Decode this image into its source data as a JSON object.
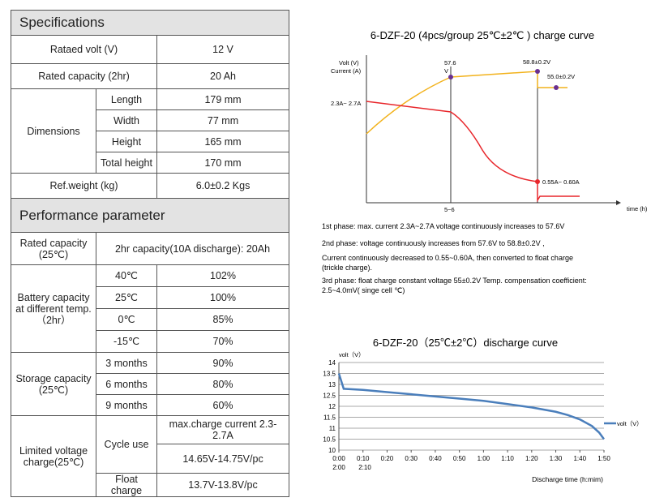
{
  "specifications": {
    "title": "Specifications",
    "rows": [
      [
        "Rataed volt (V)",
        "12 V"
      ],
      [
        "Rated capacity (2hr)",
        "20 Ah"
      ],
      [
        "Ref.weight (kg)",
        "6.0±0.2 Kgs"
      ]
    ],
    "dimensions": {
      "label": "Dimensions",
      "rows": [
        [
          "Length",
          "179 mm"
        ],
        [
          "Width",
          "77 mm"
        ],
        [
          "Height",
          "165 mm"
        ],
        [
          "Total height",
          "170 mm"
        ]
      ]
    }
  },
  "performance": {
    "title": "Performance parameter",
    "rated_capacity": {
      "label": "Rated capacity (25℃)",
      "value": "2hr capacity(10A discharge): 20Ah"
    },
    "battery_capacity": {
      "label": "Battery capacity at different temp. （2hr）",
      "rows": [
        [
          "40℃",
          "102%"
        ],
        [
          "25℃",
          "100%"
        ],
        [
          "0℃",
          "85%"
        ],
        [
          "-15℃",
          "70%"
        ]
      ]
    },
    "storage_capacity": {
      "label": "Storage capacity (25℃)",
      "rows": [
        [
          "3 months",
          "90%"
        ],
        [
          "6 months",
          "80%"
        ],
        [
          "9 months",
          "60%"
        ]
      ]
    },
    "limited_voltage": {
      "label": "Limited voltage charge(25℃)",
      "cycle_use": {
        "label": "Cycle use",
        "values": [
          "max.charge current 2.3-2.7A",
          "14.65V-14.75V/pc"
        ]
      },
      "float_charge": {
        "label": "Float charge",
        "value": "13.7V-13.8V/pc"
      }
    }
  },
  "charge_curve": {
    "title": "6-DZF-20 (4pcs/group  25℃±2℃ ) charge curve",
    "y_labels": [
      "Volt (V)",
      "Current (A)"
    ],
    "annotations": [
      "2.3A~ 2.7A",
      "57.6",
      "V",
      "58.8±0.2V",
      "55.0±0.2V",
      "0.55A~ 0.60A"
    ],
    "x_mark": "5~6",
    "x_label": "time (h)",
    "notes": [
      "1st phase: max. current 2.3A~2.7A voltage continuously increases to 57.6V",
      "2nd phase: voltage continuously increases from 57.6V to 58.8±0.2V ,",
      "Current continuously decreased to 0.55~0.60A, then converted to float charge",
      "(trickle charge).",
      "3rd phase: float charge constant voltage 55±0.2V  Temp. compensation coefficient:",
      "2.5~4.0mV( singe cell ℃)"
    ]
  },
  "discharge_curve": {
    "type": "line",
    "title": "6-DZF-20（25℃±2℃）discharge curve",
    "y_label": "volt（V）",
    "x_label": "Discharge time (h:mim)",
    "ylim": [
      10,
      14
    ],
    "yticks": [
      10,
      10.5,
      11,
      11.5,
      12,
      12.5,
      13,
      13.5,
      14
    ],
    "xlim": [
      0,
      110
    ],
    "xticks": [
      {
        "value": 0,
        "label": "0:00"
      },
      {
        "value": 10,
        "label": "0:10"
      },
      {
        "value": 20,
        "label": "0:20"
      },
      {
        "value": 30,
        "label": "0:30"
      },
      {
        "value": 40,
        "label": "0:40"
      },
      {
        "value": 50,
        "label": "0:50"
      },
      {
        "value": 60,
        "label": "1:00"
      },
      {
        "value": 70,
        "label": "1:10"
      },
      {
        "value": 80,
        "label": "1:20"
      },
      {
        "value": 90,
        "label": "1:30"
      },
      {
        "value": 100,
        "label": "1:40"
      },
      {
        "value": 110,
        "label": "1:50"
      }
    ],
    "extra_x_labels": [
      "2:00",
      "2:10"
    ],
    "grid": true,
    "series": [
      {
        "name": "volt（V）",
        "color": "#4a7ebb",
        "x": [
          0,
          2,
          10,
          20,
          30,
          40,
          50,
          60,
          70,
          80,
          90,
          95,
          100,
          105,
          108,
          110
        ],
        "values": [
          13.5,
          12.8,
          12.75,
          12.65,
          12.55,
          12.45,
          12.35,
          12.25,
          12.1,
          11.95,
          11.75,
          11.6,
          11.4,
          11.1,
          10.8,
          10.5
        ]
      }
    ]
  }
}
